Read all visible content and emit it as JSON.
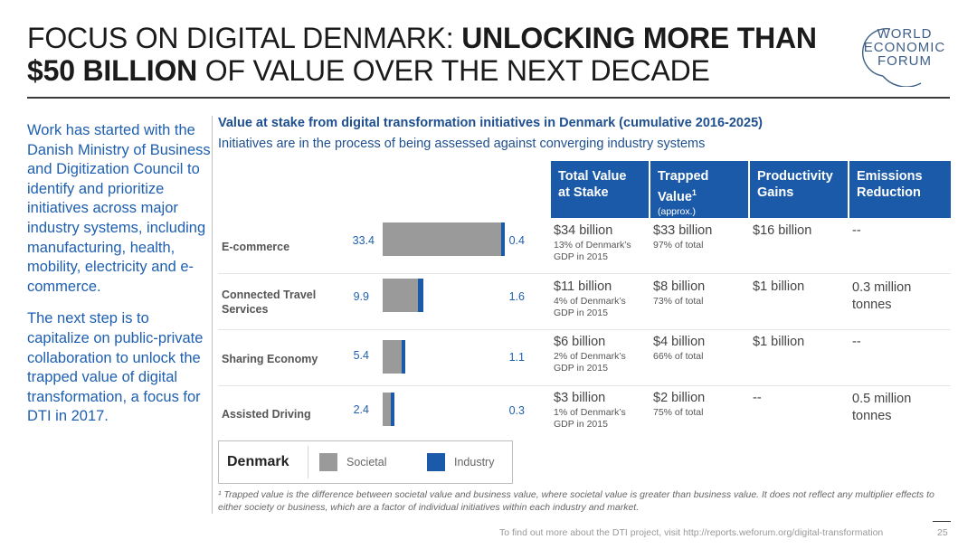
{
  "title": {
    "part1": "FOCUS ON DIGITAL DENMARK: ",
    "part2_bold": "UNLOCKING MORE THAN $50 BILLION",
    "part3": " OF VALUE OVER THE NEXT DECADE"
  },
  "logo": {
    "line1": "WORLD",
    "line2": "ECONOMIC",
    "line3": "FORUM"
  },
  "left_column": {
    "paragraph1": "Work has started with the Danish Ministry of Business and Digitization Council to identify and prioritize initiatives across major industry systems, including manufacturing, health, mobility, electricity and e-commerce.",
    "paragraph2": "The next step is to capitalize on public-private collaboration to unlock the trapped value of digital transformation, a focus for DTI in 2017."
  },
  "chart_header": {
    "title": "Value at stake from digital transformation initiatives in Denmark (cumulative 2016-2025)",
    "subtitle": "Initiatives are in the process of being assessed against converging industry systems"
  },
  "table_headers": {
    "total_value": "Total Value at Stake",
    "trapped_value": "Trapped Value",
    "trapped_sup": "1",
    "trapped_note": "(approx.)",
    "productivity": "Productivity Gains",
    "emissions": "Emissions Reduction"
  },
  "chart_data": {
    "type": "bar",
    "categories": [
      "E-commerce",
      "Connected Travel Services",
      "Sharing Economy",
      "Assisted Driving"
    ],
    "series": [
      {
        "name": "Societal",
        "values": [
          33.4,
          9.9,
          5.4,
          2.4
        ]
      },
      {
        "name": "Industry",
        "values": [
          0.4,
          1.6,
          1.1,
          0.3
        ]
      }
    ],
    "stacked": true,
    "orientation": "horizontal",
    "xlim": [
      0,
      35
    ],
    "colors": {
      "Societal": "#9a9a9a",
      "Industry": "#1a5aa8"
    }
  },
  "rows": [
    {
      "label": "E-commerce",
      "societal": "33.4",
      "industry": "0.4",
      "total_main": "$34 billion",
      "total_sub": "13% of Denmark’s GDP in 2015",
      "trapped_main": "$33 billion",
      "trapped_sub": "97% of total",
      "productivity": "$16 billion",
      "emissions": "--"
    },
    {
      "label": "Connected Travel Services",
      "societal": "9.9",
      "industry": "1.6",
      "total_main": "$11 billion",
      "total_sub": "4% of Denmark’s GDP in 2015",
      "trapped_main": "$8 billion",
      "trapped_sub": "73% of total",
      "productivity": "$1 billion",
      "emissions": "0.3 million tonnes"
    },
    {
      "label": "Sharing Economy",
      "societal": "5.4",
      "industry": "1.1",
      "total_main": "$6 billion",
      "total_sub": "2% of Denmark’s GDP in 2015",
      "trapped_main": "$4 billion",
      "trapped_sub": "66% of total",
      "productivity": "$1 billion",
      "emissions": "--"
    },
    {
      "label": "Assisted Driving",
      "societal": "2.4",
      "industry": "0.3",
      "total_main": "$3 billion",
      "total_sub": "1% of Denmark’s GDP in 2015",
      "trapped_main": "$2 billion",
      "trapped_sub": "75% of total",
      "productivity": "--",
      "emissions": "0.5 million tonnes"
    }
  ],
  "legend": {
    "title": "Denmark",
    "societal": "Societal",
    "industry": "Industry"
  },
  "footnote": "¹ Trapped value is the difference between societal value and business value, where societal value is greater than business value. It does not reflect any multiplier effects to either society or business, which are a factor of individual initiatives within each industry and market.",
  "footer": {
    "text": "To find out more about the DTI project, visit http://reports.weforum.org/digital-transformation",
    "page": "25"
  }
}
